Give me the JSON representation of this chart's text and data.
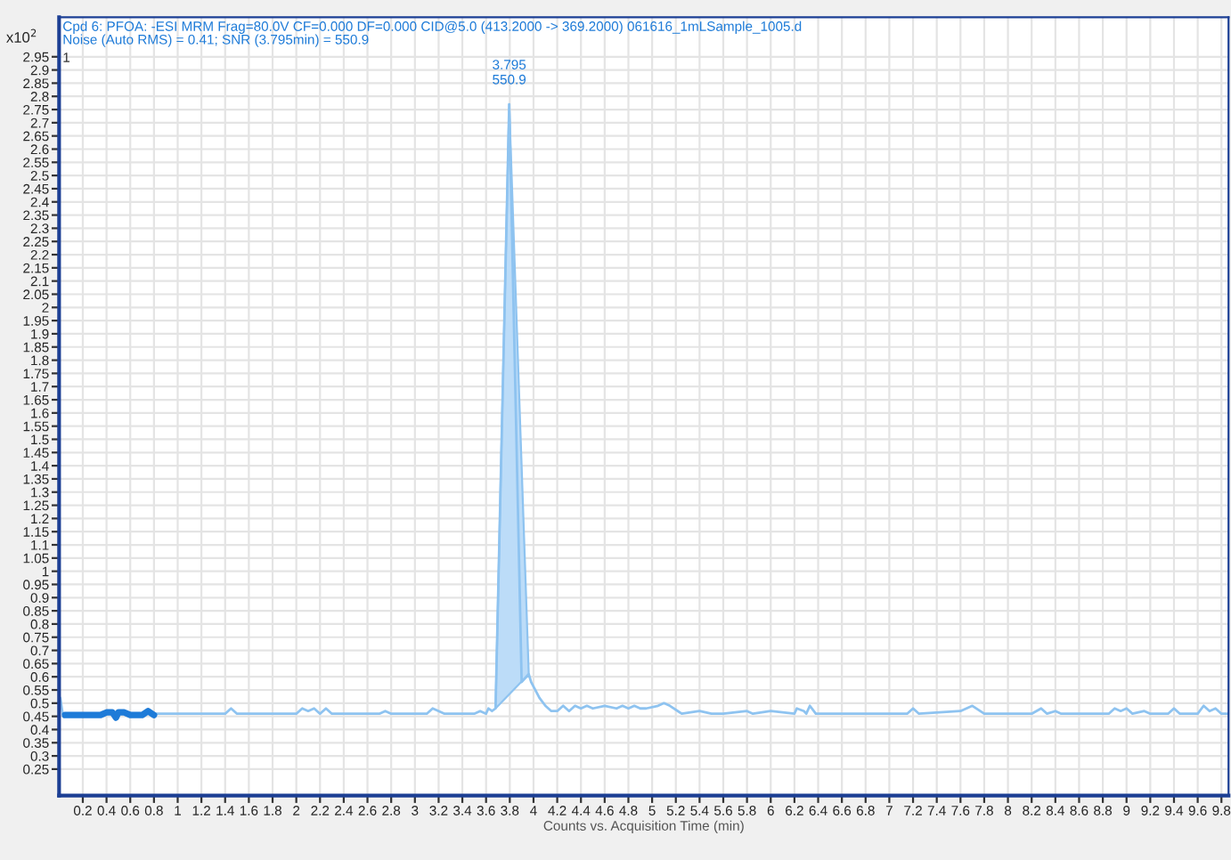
{
  "chart_data": {
    "type": "line",
    "xlabel": "Counts vs. Acquisition Time (min)",
    "ylabel": "x10$^{2}$",
    "annotations": [
      "Cpd 6: PFOA: -ESI MRM Frag=80.0V CF=0.000 DF=0.000 CID@5.0 (413.2000 -> 369.2000) 061616_1mLSample_1005.d",
      "Noise (Auto RMS) = 0.41; SNR (3.795min) = 550.9",
      "1",
      {
        "text": "3.795",
        "x": 3.795,
        "y": 2.77
      },
      {
        "text": "550.9",
        "x": 3.795,
        "y": 2.77
      }
    ],
    "xlim": [
      0,
      9.86
    ],
    "ylim": [
      0.15,
      3.1
    ],
    "xticks": [
      0.2,
      0.4,
      0.6,
      0.8,
      1,
      1.2,
      1.4,
      1.6,
      1.8,
      2,
      2.2,
      2.4,
      2.6,
      2.8,
      3,
      3.2,
      3.4,
      3.6,
      3.8,
      4,
      4.2,
      4.4,
      4.6,
      4.8,
      5,
      5.2,
      5.4,
      5.6,
      5.8,
      6,
      6.2,
      6.4,
      6.6,
      6.8,
      7,
      7.2,
      7.4,
      7.6,
      7.8,
      8,
      8.2,
      8.4,
      8.6,
      8.8,
      9,
      9.2,
      9.4,
      9.6,
      9.8
    ],
    "yticks": [
      0.25,
      0.3,
      0.35,
      0.4,
      0.45,
      0.5,
      0.55,
      0.6,
      0.65,
      0.7,
      0.75,
      0.8,
      0.85,
      0.9,
      0.95,
      1,
      1.05,
      1.1,
      1.15,
      1.2,
      1.25,
      1.3,
      1.35,
      1.4,
      1.45,
      1.5,
      1.55,
      1.6,
      1.65,
      1.7,
      1.75,
      1.8,
      1.85,
      1.9,
      1.95,
      2,
      2.05,
      2.1,
      2.15,
      2.2,
      2.25,
      2.3,
      2.35,
      2.4,
      2.45,
      2.5,
      2.55,
      2.6,
      2.65,
      2.7,
      2.75,
      2.8,
      2.85,
      2.9,
      2.95
    ],
    "grid": true,
    "series": [
      {
        "type": "area",
        "color": "#bcdcf8",
        "x": [
          3.68,
          3.795,
          3.96
        ],
        "values": [
          0.48,
          2.77,
          0.61
        ]
      },
      {
        "color": "#8ec3f0",
        "x": [
          0.0,
          0.01,
          0.03,
          0.8,
          0.9,
          1.4,
          1.45,
          1.5,
          2.0,
          2.05,
          2.1,
          2.15,
          2.2,
          2.25,
          2.3,
          2.7,
          2.75,
          2.8,
          3.1,
          3.15,
          3.2,
          3.25,
          3.5,
          3.55,
          3.6,
          3.62,
          3.65,
          3.68,
          3.795,
          3.9,
          3.96,
          3.98,
          4.05,
          4.1,
          4.15,
          4.2,
          4.25,
          4.3,
          4.35,
          4.4,
          4.45,
          4.5,
          4.6,
          4.7,
          4.75,
          4.8,
          4.85,
          4.9,
          4.95,
          5.05,
          5.1,
          5.15,
          5.25,
          5.4,
          5.5,
          5.6,
          5.8,
          5.85,
          6.0,
          6.2,
          6.22,
          6.28,
          6.3,
          6.33,
          6.38,
          6.5,
          7.0,
          7.15,
          7.2,
          7.25,
          7.6,
          7.7,
          7.8,
          8.2,
          8.28,
          8.33,
          8.4,
          8.45,
          8.85,
          8.9,
          8.95,
          9.0,
          9.05,
          9.15,
          9.2,
          9.35,
          9.4,
          9.45,
          9.6,
          9.65,
          9.7,
          9.75,
          9.8,
          9.86
        ],
        "values": [
          0.46,
          0.52,
          0.46,
          0.46,
          0.46,
          0.46,
          0.48,
          0.46,
          0.46,
          0.48,
          0.47,
          0.48,
          0.46,
          0.48,
          0.46,
          0.46,
          0.47,
          0.46,
          0.46,
          0.48,
          0.47,
          0.46,
          0.46,
          0.47,
          0.46,
          0.48,
          0.47,
          0.48,
          2.77,
          0.58,
          0.61,
          0.58,
          0.52,
          0.49,
          0.47,
          0.47,
          0.49,
          0.47,
          0.49,
          0.48,
          0.49,
          0.48,
          0.49,
          0.48,
          0.49,
          0.48,
          0.49,
          0.48,
          0.48,
          0.49,
          0.5,
          0.49,
          0.46,
          0.47,
          0.46,
          0.46,
          0.47,
          0.46,
          0.47,
          0.46,
          0.48,
          0.47,
          0.46,
          0.49,
          0.46,
          0.46,
          0.46,
          0.46,
          0.48,
          0.46,
          0.47,
          0.49,
          0.46,
          0.46,
          0.48,
          0.46,
          0.47,
          0.46,
          0.46,
          0.48,
          0.47,
          0.48,
          0.46,
          0.47,
          0.46,
          0.46,
          0.48,
          0.46,
          0.46,
          0.49,
          0.47,
          0.48,
          0.46,
          0.46
        ]
      },
      {
        "color": "#1e7bd8",
        "x": [
          0.05,
          0.35,
          0.4,
          0.45,
          0.48,
          0.5,
          0.55,
          0.6,
          0.7,
          0.75,
          0.8
        ],
        "values": [
          0.455,
          0.455,
          0.465,
          0.465,
          0.445,
          0.465,
          0.465,
          0.455,
          0.455,
          0.47,
          0.455
        ]
      }
    ]
  }
}
